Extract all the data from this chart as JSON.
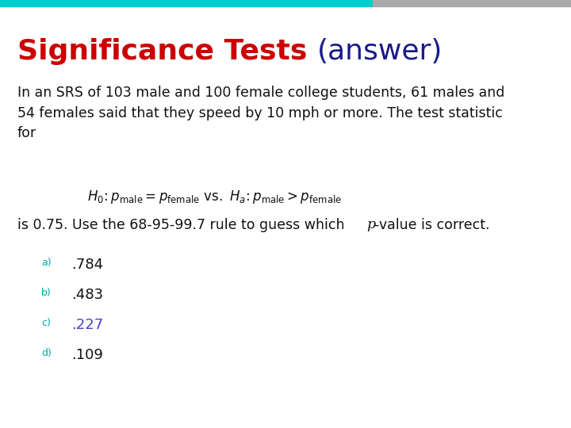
{
  "title_part1": "Significance Tests ",
  "title_part2": "(answer)",
  "title_color1": "#cc0000",
  "title_color2": "#1a1a8c",
  "title_fontsize": 26,
  "body_text": "In an SRS of 103 male and 100 female college students, 61 males and\n54 females said that they speed by 10 mph or more. The test statistic\nfor",
  "body_fontsize": 12.5,
  "body_color": "#111111",
  "stat_fontsize": 12.5,
  "formula_fontsize": 12,
  "options": [
    ".784",
    ".483",
    ".227",
    ".109"
  ],
  "option_labels": [
    "a)",
    "b)",
    "c)",
    "d)"
  ],
  "option_colors": [
    "#111111",
    "#111111",
    "#4444cc",
    "#111111"
  ],
  "option_label_colors": [
    "#00aaaa",
    "#00aaaa",
    "#00aaaa",
    "#00aaaa"
  ],
  "option_fontsize": 13,
  "header_bar_color1": "#00cccc",
  "header_bar_color2": "#aaaaaa",
  "background_color": "#ffffff"
}
